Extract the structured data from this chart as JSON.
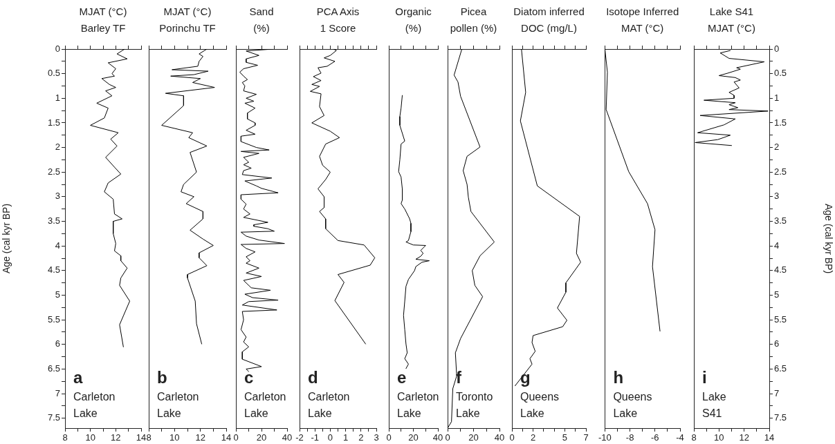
{
  "chart_data": [
    {
      "type": "line",
      "title": "MJAT (°C)\nBarley TF",
      "ylabel": "Age (cal kyr BP)",
      "xlim": [
        8,
        14
      ],
      "xticks": [
        8,
        {
          "value": 9,
          "label": null
        },
        10,
        {
          "value": 11,
          "label": null
        },
        12,
        {
          "value": 13,
          "label": null
        },
        14
      ],
      "ylim": [
        7.7,
        0
      ],
      "yticks": [
        0,
        {
          "value": 0.25,
          "label": null
        },
        0.5,
        {
          "value": 0.75,
          "label": null
        },
        1,
        {
          "value": 1.25,
          "label": null
        },
        1.5,
        {
          "value": 1.75,
          "label": null
        },
        2,
        {
          "value": 2.25,
          "label": null
        },
        2.5,
        {
          "value": 2.75,
          "label": null
        },
        3,
        {
          "value": 3.25,
          "label": null
        },
        3.5,
        {
          "value": 3.75,
          "label": null
        },
        4,
        {
          "value": 4.25,
          "label": null
        },
        4.5,
        {
          "value": 4.75,
          "label": null
        },
        5,
        {
          "value": 5.25,
          "label": null
        },
        5.5,
        {
          "value": 5.75,
          "label": null
        },
        6,
        {
          "value": 6.25,
          "label": null
        },
        6.5,
        {
          "value": 6.75,
          "label": null
        },
        7,
        {
          "value": 7.25,
          "label": null
        },
        7.5
      ],
      "marker": "none",
      "line_style": "solid",
      "annotations": [
        "a",
        "Carleton\nLake"
      ],
      "series": [
        {
          "color": "#000000",
          "x": [
            12.7,
            12.1,
            12.9,
            11.4,
            12.0,
            11.7,
            11.9,
            10.9,
            11.5,
            12.0,
            11.2,
            11.7,
            10.5,
            11.4,
            11.1,
            10.0,
            12.2,
            11.6,
            12.1,
            11.2,
            11.9,
            12.4,
            11.4,
            11.1,
            11.8,
            11.9,
            12.5,
            11.8,
            11.8,
            12.0,
            11.9,
            12.4,
            12.4,
            12.9,
            12.4,
            12.3,
            13.1,
            12.3,
            12.6
          ],
          "values": [
            0,
            0.1,
            0.2,
            0.28,
            0.4,
            0.5,
            0.55,
            0.6,
            0.72,
            0.78,
            0.85,
            0.95,
            1.1,
            1.2,
            1.4,
            1.55,
            1.7,
            1.83,
            1.97,
            2.2,
            2.4,
            2.54,
            2.72,
            2.9,
            3.05,
            3.35,
            3.45,
            3.5,
            3.75,
            3.95,
            4.1,
            4.2,
            4.3,
            4.45,
            4.65,
            4.8,
            5.12,
            5.6,
            6.05
          ]
        }
      ]
    },
    {
      "type": "line",
      "title": "MJAT (°C)\nPorinchu TF",
      "xlim": [
        8,
        14
      ],
      "xticks": [
        8,
        {
          "value": 9,
          "label": null
        },
        10,
        {
          "value": 11,
          "label": null
        },
        12,
        {
          "value": 13,
          "label": null
        },
        14
      ],
      "ylim": [
        7.7,
        0
      ],
      "tick_labels": "x",
      "marker": "none",
      "line_style": "solid",
      "annotations": [
        "b",
        "Carleton\nLake"
      ],
      "series": [
        {
          "color": "#000000",
          "x": [
            12.5,
            11.9,
            12.2,
            11.9,
            11.8,
            9.8,
            12.6,
            11.5,
            9.7,
            12.0,
            11.4,
            13.1,
            9.3,
            10.7,
            10.7,
            9.0,
            11.4,
            11.1,
            12.5,
            11.2,
            11.7,
            10.7,
            10.5,
            11.5,
            10.9,
            12.2,
            12.2,
            11.2,
            12.2,
            13.0,
            11.9,
            11.9,
            12.5,
            11.0,
            11.0,
            11.6,
            11.7,
            12.1
          ],
          "values": [
            0,
            0.1,
            0.15,
            0.25,
            0.35,
            0.42,
            0.45,
            0.52,
            0.55,
            0.6,
            0.68,
            0.78,
            0.9,
            0.95,
            1.15,
            1.55,
            1.7,
            1.8,
            1.97,
            2.1,
            2.5,
            2.75,
            2.9,
            3.0,
            3.14,
            3.3,
            3.45,
            3.68,
            3.86,
            3.99,
            4.14,
            4.24,
            4.4,
            4.58,
            4.65,
            5.12,
            5.58,
            5.99
          ]
        }
      ]
    },
    {
      "type": "line",
      "title": "Sand\n(%)",
      "xlim": [
        0,
        40
      ],
      "xticks": [
        0,
        {
          "value": 10,
          "label": null
        },
        20,
        {
          "value": 30,
          "label": null
        },
        40
      ],
      "ylim": [
        7.7,
        0
      ],
      "tick_labels": "x",
      "marker": "none",
      "line_style": "solid",
      "annotations": [
        "c",
        "Carleton\nLake"
      ],
      "series": [
        {
          "color": "#000000",
          "x": [
            29,
            8,
            18,
            8,
            8,
            17,
            6,
            3,
            6,
            9,
            5,
            7,
            6,
            16,
            8,
            14,
            7,
            15,
            9,
            9,
            15,
            15,
            8,
            15,
            4,
            4,
            16,
            26,
            4,
            18,
            6,
            10,
            6,
            12,
            6,
            5,
            28,
            7,
            16,
            20,
            33,
            4,
            4,
            8,
            6,
            11,
            6,
            25,
            14,
            14,
            25,
            30,
            4,
            8,
            18,
            38,
            4,
            8,
            15,
            8,
            11,
            8,
            18,
            8,
            20,
            6,
            12,
            27,
            7,
            13,
            33,
            10,
            5,
            32,
            5,
            6,
            4,
            8,
            6,
            10,
            5,
            5,
            20,
            8,
            10
          ],
          "values": [
            0,
            0.04,
            0.13,
            0.2,
            0.27,
            0.33,
            0.4,
            0.47,
            0.55,
            0.62,
            0.68,
            0.75,
            0.85,
            0.92,
            1.0,
            1.06,
            1.1,
            1.2,
            1.3,
            1.42,
            1.5,
            1.55,
            1.65,
            1.73,
            1.77,
            1.88,
            2.0,
            2.05,
            2.08,
            2.12,
            2.2,
            2.3,
            2.35,
            2.42,
            2.47,
            2.55,
            2.62,
            2.68,
            2.78,
            2.83,
            2.92,
            2.96,
            3.05,
            3.15,
            3.25,
            3.35,
            3.42,
            3.52,
            3.57,
            3.6,
            3.65,
            3.7,
            3.72,
            3.8,
            3.88,
            3.95,
            3.97,
            4.05,
            4.12,
            4.22,
            4.3,
            4.35,
            4.45,
            4.55,
            4.62,
            4.7,
            4.85,
            4.9,
            4.98,
            5.05,
            5.1,
            5.13,
            5.2,
            5.3,
            5.33,
            5.5,
            5.7,
            5.85,
            5.95,
            6.05,
            6.15,
            6.3,
            6.45,
            6.5,
            6.55
          ]
        }
      ]
    },
    {
      "type": "line",
      "title": "PCA Axis\n1 Score",
      "xlim": [
        -2,
        3
      ],
      "xticks": [
        -2,
        {
          "value": -1.5,
          "label": null
        },
        -1,
        {
          "value": -0.5,
          "label": null
        },
        0,
        {
          "value": 0.5,
          "label": null
        },
        1,
        {
          "value": 1.5,
          "label": null
        },
        2,
        {
          "value": 2.5,
          "label": null
        },
        3
      ],
      "ylim": [
        7.7,
        0
      ],
      "tick_labels": "x",
      "marker": "none",
      "line_style": "solid",
      "annotations": [
        "d",
        "Carleton\nLake"
      ],
      "series": [
        {
          "color": "#000000",
          "x": [
            0.2,
            0.4,
            0.0,
            -0.4,
            0.3,
            -0.2,
            -0.8,
            -0.6,
            -1.1,
            -0.6,
            -1.2,
            -0.7,
            -1.3,
            -0.6,
            -0.7,
            -0.4,
            -1.2,
            0.0,
            0.6,
            -0.3,
            -0.7,
            -0.5,
            0.0,
            -0.3,
            -0.8,
            -0.4,
            -0.4,
            -0.7,
            -0.3,
            -0.3,
            0.5,
            2.2,
            2.9,
            2.6,
            0.5,
            0.9,
            0.3,
            2.3
          ],
          "values": [
            0,
            0.03,
            0.13,
            0.18,
            0.25,
            0.35,
            0.38,
            0.49,
            0.56,
            0.64,
            0.72,
            0.76,
            0.86,
            0.91,
            1.17,
            1.35,
            1.5,
            1.67,
            1.8,
            1.93,
            2.18,
            2.36,
            2.5,
            2.65,
            2.84,
            3.0,
            3.22,
            3.3,
            3.45,
            3.65,
            3.89,
            3.98,
            4.24,
            4.39,
            4.58,
            4.74,
            5.11,
            5.99
          ]
        }
      ]
    },
    {
      "type": "line",
      "title": "Organic\n(%)",
      "xlim": [
        0,
        40
      ],
      "xticks": [
        0,
        {
          "value": 10,
          "label": null
        },
        20,
        {
          "value": 30,
          "label": null
        },
        40
      ],
      "ylim": [
        7.7,
        0
      ],
      "tick_labels": "x",
      "marker": "none",
      "line_style": "solid",
      "annotations": [
        "e",
        "Carleton\nLake"
      ],
      "series": [
        {
          "color": "#000000",
          "x": [
            11,
            10,
            9,
            9,
            13,
            10,
            9,
            8,
            10,
            11,
            11,
            10,
            13,
            17,
            18,
            18,
            16,
            14,
            20,
            30,
            26,
            28,
            26,
            22,
            33,
            27,
            22,
            21,
            16,
            14,
            13,
            12,
            13,
            14,
            15,
            13,
            16,
            14
          ],
          "values": [
            0.94,
            1.2,
            1.37,
            1.55,
            1.87,
            1.93,
            2.25,
            2.49,
            2.6,
            2.84,
            3.07,
            3.14,
            3.25,
            3.45,
            3.54,
            3.71,
            3.89,
            3.92,
            3.98,
            3.99,
            4.09,
            4.15,
            4.21,
            4.27,
            4.3,
            4.33,
            4.42,
            4.5,
            4.68,
            4.82,
            5.12,
            5.41,
            5.7,
            5.99,
            6.17,
            6.29,
            6.4,
            6.49
          ]
        }
      ]
    },
    {
      "type": "line",
      "title": "Picea\npollen (%)",
      "xlim": [
        0,
        40
      ],
      "xticks": [
        0,
        {
          "value": 10,
          "label": null
        },
        20,
        {
          "value": 30,
          "label": null
        },
        40
      ],
      "ylim": [
        7.7,
        0
      ],
      "tick_labels": "x",
      "marker": "none",
      "line_style": "solid",
      "annotations": [
        "f",
        "Toronto\nLake"
      ],
      "series": [
        {
          "color": "#000000",
          "x": [
            11,
            5,
            8,
            10,
            25,
            15,
            12,
            15,
            16,
            18,
            36,
            25,
            19,
            21,
            27,
            10,
            6,
            7,
            4,
            3,
            0
          ],
          "values": [
            0,
            0.53,
            0.67,
            0.96,
            1.99,
            2.18,
            2.47,
            2.75,
            3.01,
            3.3,
            3.92,
            4.2,
            4.5,
            4.8,
            5.03,
            5.88,
            6.17,
            6.64,
            6.9,
            7.57,
            7.7
          ]
        }
      ]
    },
    {
      "type": "line",
      "title": "Diatom inferred\nDOC (mg/L)",
      "xlim": [
        0,
        7
      ],
      "xticks": [
        0,
        {
          "value": 1,
          "label": null
        },
        2,
        {
          "value": 3,
          "label": null
        },
        {
          "value": 4,
          "label": null
        },
        5,
        {
          "value": 6,
          "label": null
        },
        7
      ],
      "ylim": [
        7.7,
        0
      ],
      "tick_labels": "x",
      "marker": "none",
      "line_style": "solid",
      "annotations": [
        "g",
        "Queens\nLake"
      ],
      "series": [
        {
          "color": "#000000",
          "x": [
            0.9,
            1.3,
            0.8,
            2.4,
            6.4,
            6.1,
            6.5,
            5.1,
            5.1,
            4.3,
            5.2,
            4.8,
            2.0,
            1.9,
            2.2,
            1.7,
            1.9,
            0.3
          ],
          "values": [
            0,
            0.88,
            1.46,
            2.78,
            3.4,
            4.15,
            4.33,
            4.75,
            4.94,
            5.26,
            5.51,
            5.64,
            5.82,
            5.96,
            6.14,
            6.29,
            6.4,
            6.84
          ]
        }
      ]
    },
    {
      "type": "line",
      "title": "Isotope Inferred\nMAT (°C)",
      "xlim": [
        -10,
        -4
      ],
      "xticks": [
        -10,
        {
          "value": -9,
          "label": null
        },
        -8,
        {
          "value": -7,
          "label": null
        },
        -6,
        {
          "value": -5,
          "label": null
        },
        -4
      ],
      "ylim": [
        7.7,
        0
      ],
      "tick_labels": "x",
      "marker": "none",
      "line_style": "solid",
      "annotations": [
        "h",
        "Queens\nLake"
      ],
      "series": [
        {
          "color": "#000000",
          "x": [
            -10,
            -9.8,
            -9.9,
            -8.1,
            -6.6,
            -6.0,
            -6.2,
            -5.6
          ],
          "values": [
            0,
            0.47,
            1.23,
            2.49,
            3.14,
            3.67,
            4.42,
            5.73
          ]
        }
      ]
    },
    {
      "type": "line",
      "title": "Lake S41\nMJAT (°C)",
      "y2label": "Age (cal kyr BP)",
      "xlim": [
        8,
        14
      ],
      "xticks": [
        8,
        {
          "value": 9,
          "label": null
        },
        10,
        {
          "value": 11,
          "label": null
        },
        12,
        {
          "value": 13,
          "label": null
        },
        14
      ],
      "y2lim": [
        7.7,
        0
      ],
      "y2ticks": [
        0,
        {
          "value": 0.25,
          "label": null
        },
        0.5,
        {
          "value": 0.75,
          "label": null
        },
        1,
        {
          "value": 1.25,
          "label": null
        },
        1.5,
        {
          "value": 1.75,
          "label": null
        },
        2,
        {
          "value": 2.25,
          "label": null
        },
        2.5,
        {
          "value": 2.75,
          "label": null
        },
        3,
        {
          "value": 3.25,
          "label": null
        },
        3.5,
        {
          "value": 3.75,
          "label": null
        },
        4,
        {
          "value": 4.25,
          "label": null
        },
        4.5,
        {
          "value": 4.75,
          "label": null
        },
        5,
        {
          "value": 5.25,
          "label": null
        },
        5.5,
        {
          "value": 5.75,
          "label": null
        },
        6,
        {
          "value": 6.25,
          "label": null
        },
        6.5,
        {
          "value": 6.75,
          "label": null
        },
        7,
        {
          "value": 7.25,
          "label": null
        },
        7.5
      ],
      "marker": "none",
      "line_style": "solid",
      "annotations": [
        "i",
        "Lake\nS41"
      ],
      "series": [
        {
          "color": "#000000",
          "axis": "y2",
          "x": [
            10.9,
            10.1,
            10.8,
            13.6,
            11.4,
            11.7,
            10.7,
            10.0,
            11.3,
            11.7,
            11.2,
            11.6,
            10.8,
            11.2,
            11.2,
            8.8,
            11.3,
            10.8,
            11.5,
            10.8,
            13.9,
            8.5,
            11.3,
            10.4,
            8.3,
            10.9,
            9.9,
            8.1,
            11.0
          ],
          "values": [
            0.03,
            0.08,
            0.19,
            0.26,
            0.38,
            0.41,
            0.49,
            0.54,
            0.58,
            0.63,
            0.67,
            0.79,
            0.88,
            0.94,
            1.0,
            1.04,
            1.09,
            1.13,
            1.19,
            1.23,
            1.26,
            1.35,
            1.42,
            1.54,
            1.7,
            1.75,
            1.84,
            1.9,
            1.96
          ]
        }
      ]
    }
  ]
}
